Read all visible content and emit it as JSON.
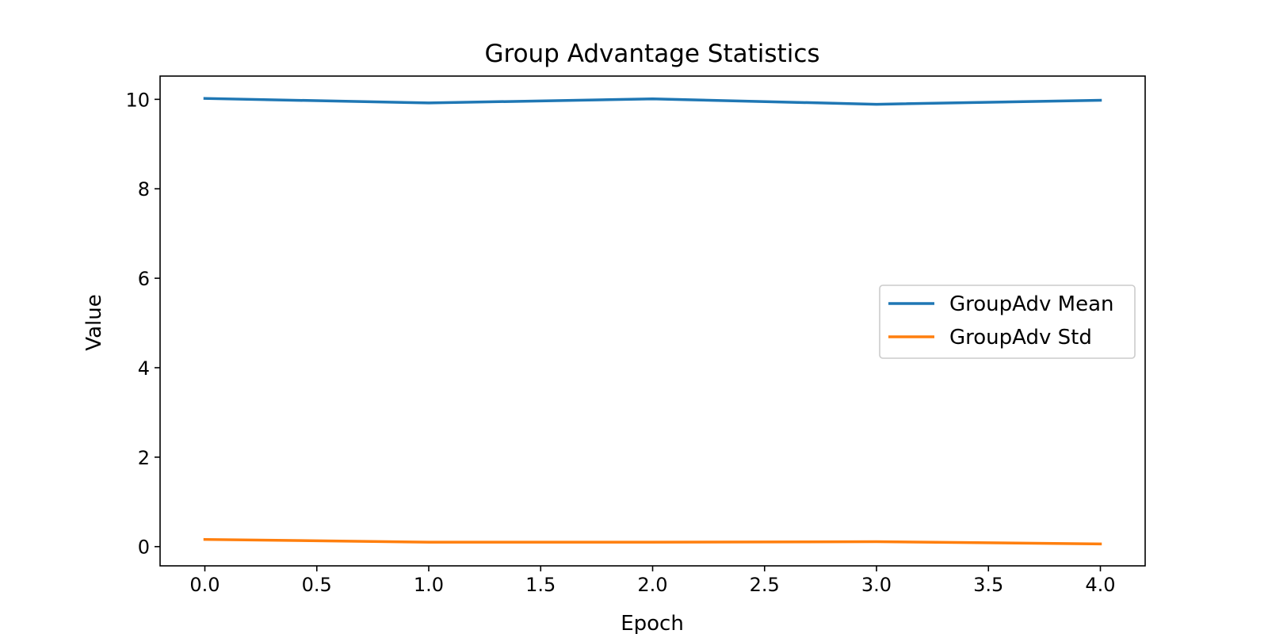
{
  "chart_data": {
    "type": "line",
    "title": "Group Advantage Statistics",
    "xlabel": "Epoch",
    "ylabel": "Value",
    "x": [
      0,
      1,
      2,
      3,
      4
    ],
    "xlim": [
      -0.2,
      4.2
    ],
    "ylim": [
      -0.43,
      10.52
    ],
    "xticks": [
      0.0,
      0.5,
      1.0,
      1.5,
      2.0,
      2.5,
      3.0,
      3.5,
      4.0
    ],
    "xtick_labels": [
      "0.0",
      "0.5",
      "1.0",
      "1.5",
      "2.0",
      "2.5",
      "3.0",
      "3.5",
      "4.0"
    ],
    "yticks": [
      0,
      2,
      4,
      6,
      8,
      10
    ],
    "ytick_labels": [
      "0",
      "2",
      "4",
      "6",
      "8",
      "10"
    ],
    "grid": false,
    "legend_position": "center-right",
    "series": [
      {
        "name": "GroupAdv Mean",
        "color": "#1f77b4",
        "values": [
          10.02,
          9.92,
          10.01,
          9.89,
          9.98
        ]
      },
      {
        "name": "GroupAdv Std",
        "color": "#ff7f0e",
        "values": [
          0.16,
          0.1,
          0.1,
          0.11,
          0.06
        ]
      }
    ]
  }
}
